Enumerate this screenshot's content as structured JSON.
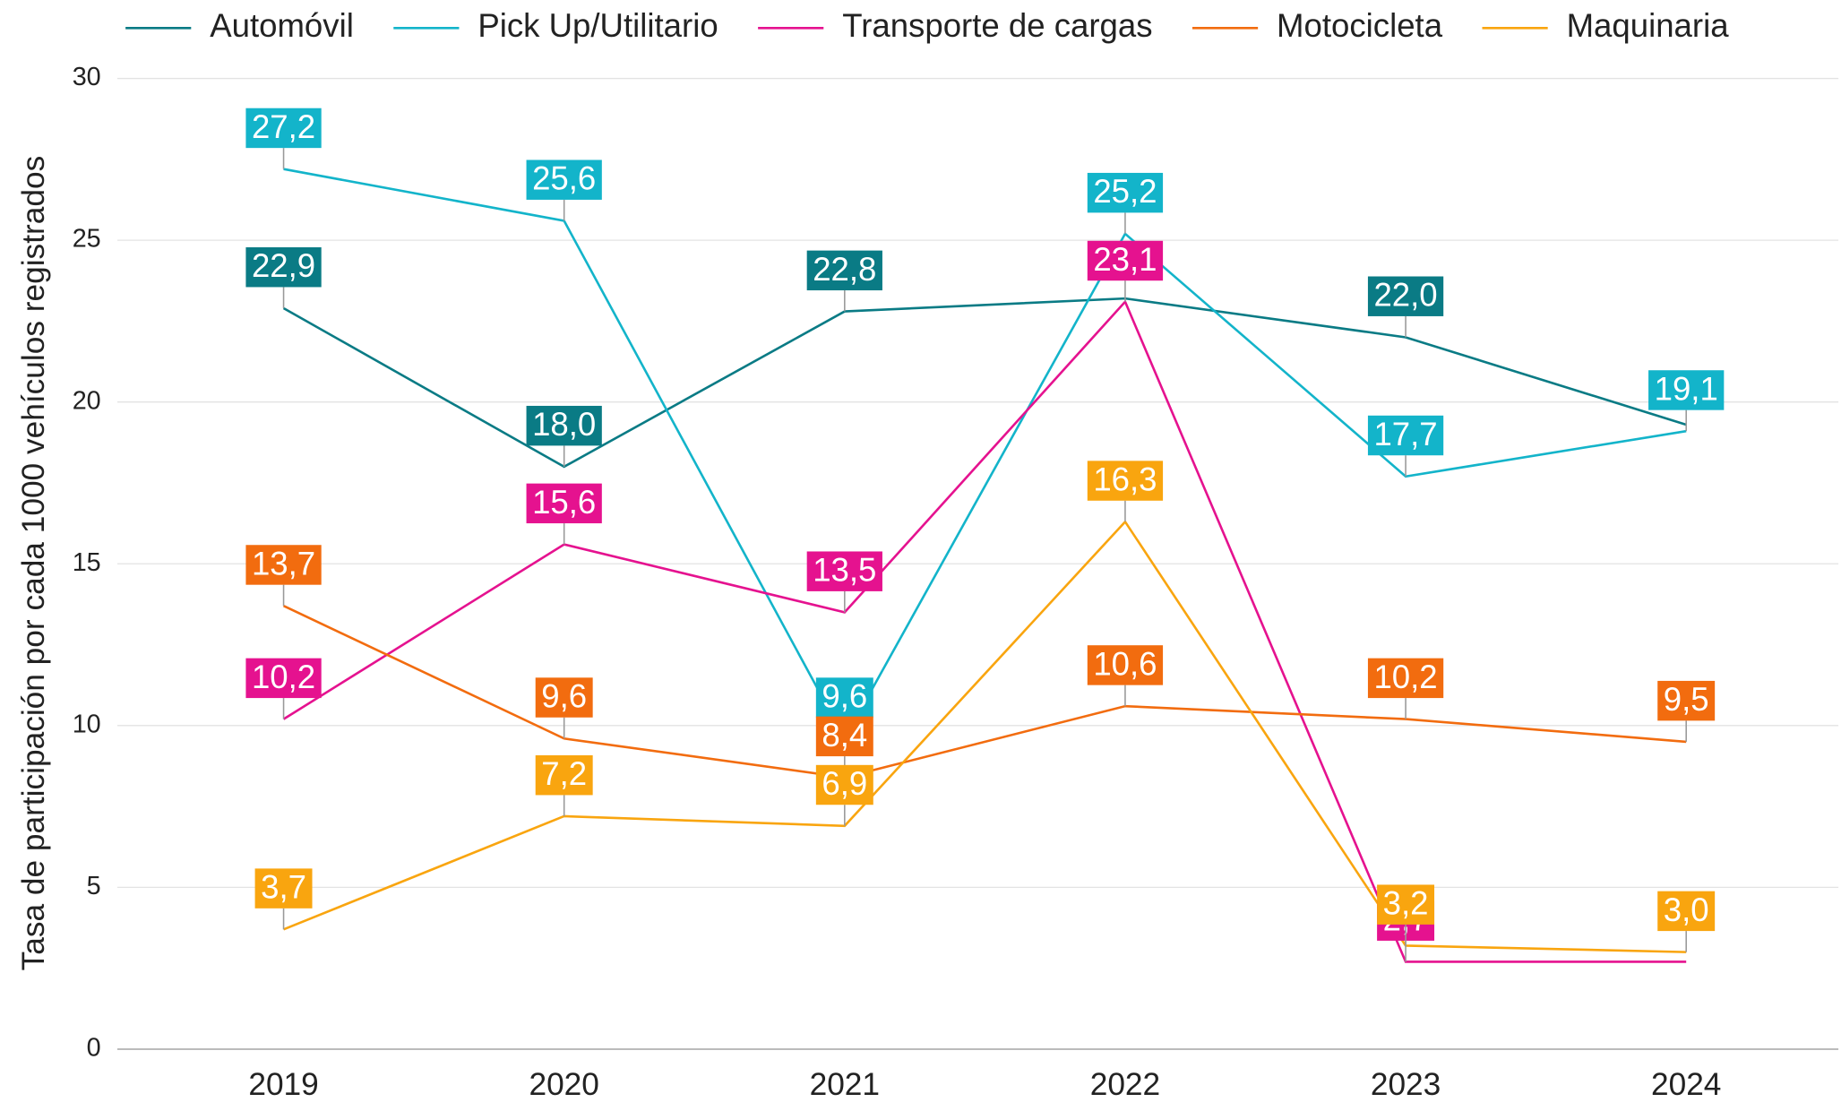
{
  "chart_data": {
    "type": "line",
    "ylabel": "Tasa de participación por cada 1000 vehículos registrados",
    "categories": [
      "2019",
      "2020",
      "2021",
      "2022",
      "2023",
      "2024"
    ],
    "ylim": [
      0,
      30
    ],
    "yticks": [
      0,
      5,
      10,
      15,
      20,
      25,
      30
    ],
    "grid": true,
    "legend": "top",
    "series": [
      {
        "name": "Automóvil",
        "color": "#0a7b85",
        "values": [
          22.9,
          18.0,
          22.8,
          23.2,
          22.0,
          19.3
        ],
        "value_labels": [
          "22,9",
          "18,0",
          "22,8",
          null,
          "22,0",
          null
        ]
      },
      {
        "name": "Pick Up/Utilitario",
        "color": "#13b4ca",
        "values": [
          27.2,
          25.6,
          9.6,
          25.2,
          17.7,
          19.1
        ],
        "value_labels": [
          "27,2",
          "25,6",
          "9,6",
          "25,2",
          "17,7",
          "19,1"
        ]
      },
      {
        "name": "Transporte de cargas",
        "color": "#e5128f",
        "values": [
          10.2,
          15.6,
          13.5,
          23.1,
          2.7,
          2.7
        ],
        "value_labels": [
          "10,2",
          "15,6",
          "13,5",
          "23,1",
          "2,7",
          null
        ]
      },
      {
        "name": "Motocicleta",
        "color": "#f26c0f",
        "values": [
          13.7,
          9.6,
          8.4,
          10.6,
          10.2,
          9.5
        ],
        "value_labels": [
          "13,7",
          "9,6",
          "8,4",
          "10,6",
          "10,2",
          "9,5"
        ]
      },
      {
        "name": "Maquinaria",
        "color": "#f9a50f",
        "values": [
          3.7,
          7.2,
          6.9,
          16.3,
          3.2,
          3.0
        ],
        "value_labels": [
          "3,7",
          "7,2",
          "6,9",
          "16,3",
          "3,2",
          "3,0"
        ]
      }
    ]
  }
}
